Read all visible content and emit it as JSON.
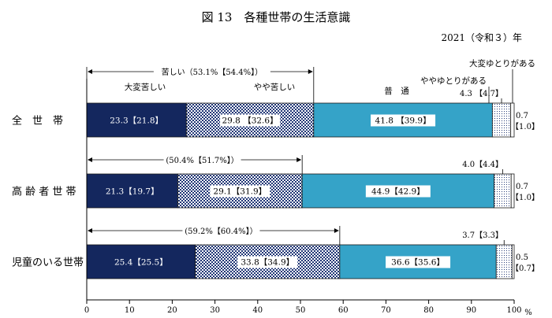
{
  "chart_data": {
    "type": "bar",
    "stacked": true,
    "orientation": "horizontal",
    "title": "図 13　各種世帯の生活意識",
    "subtitle": "2021（令和３）年",
    "x_unit": "%",
    "xlim": [
      0,
      100
    ],
    "x_ticks": [
      "0",
      "10",
      "20",
      "30",
      "40",
      "50",
      "60",
      "70",
      "80",
      "90",
      "100"
    ],
    "categories": [
      "全　世　帯",
      "高 齢 者 世 帯",
      "児童のいる世帯"
    ],
    "segment_labels": {
      "very_hard": "大変苦しい",
      "somewhat_hard": "やや苦しい",
      "normal": "普　通",
      "somewhat_easy": "ややゆとりがある",
      "very_easy": "大変ゆとりがある"
    },
    "series": [
      {
        "key": "very_hard",
        "values": [
          23.3,
          21.3,
          25.4
        ],
        "labels": [
          "23.3【21.8】",
          "21.3【19.7】",
          "25.4【25.5】"
        ]
      },
      {
        "key": "somewhat_hard",
        "values": [
          29.8,
          29.1,
          33.8
        ],
        "labels": [
          "29.8 【32.6】",
          "29.1【31.9】",
          "33.8【34.9】"
        ]
      },
      {
        "key": "normal",
        "values": [
          41.8,
          44.9,
          36.6
        ],
        "labels": [
          "41.8 【39.9】",
          "44.9【42.9】",
          "36.6【35.6】"
        ]
      },
      {
        "key": "somewhat_easy",
        "values": [
          4.3,
          4.0,
          3.7
        ],
        "labels": [
          "4.3 【4.7】",
          "4.0【4.4】",
          "3.7【3.3】"
        ]
      },
      {
        "key": "very_easy",
        "values": [
          0.7,
          0.7,
          0.5
        ],
        "labels_top": [
          "0.7",
          "0.7",
          "0.5"
        ],
        "labels_bottom": [
          "【1.0】",
          "【1.0】",
          "【0.7】"
        ]
      }
    ],
    "bracket_labels": [
      "苦しい（53.1%【54.4%】）",
      "(50.4%【51.7%】）",
      "(59.2%【60.4%】）"
    ],
    "colors": {
      "very_hard": "#14275e",
      "somewhat_hard_bg": "#ffffff",
      "somewhat_hard_check": "#1f3575",
      "normal": "#35a3c8",
      "somewhat_easy_bg": "#ffffff",
      "somewhat_easy_dot": "#2a3f7a",
      "very_easy": "#ffffff",
      "axis": "#000000"
    }
  }
}
